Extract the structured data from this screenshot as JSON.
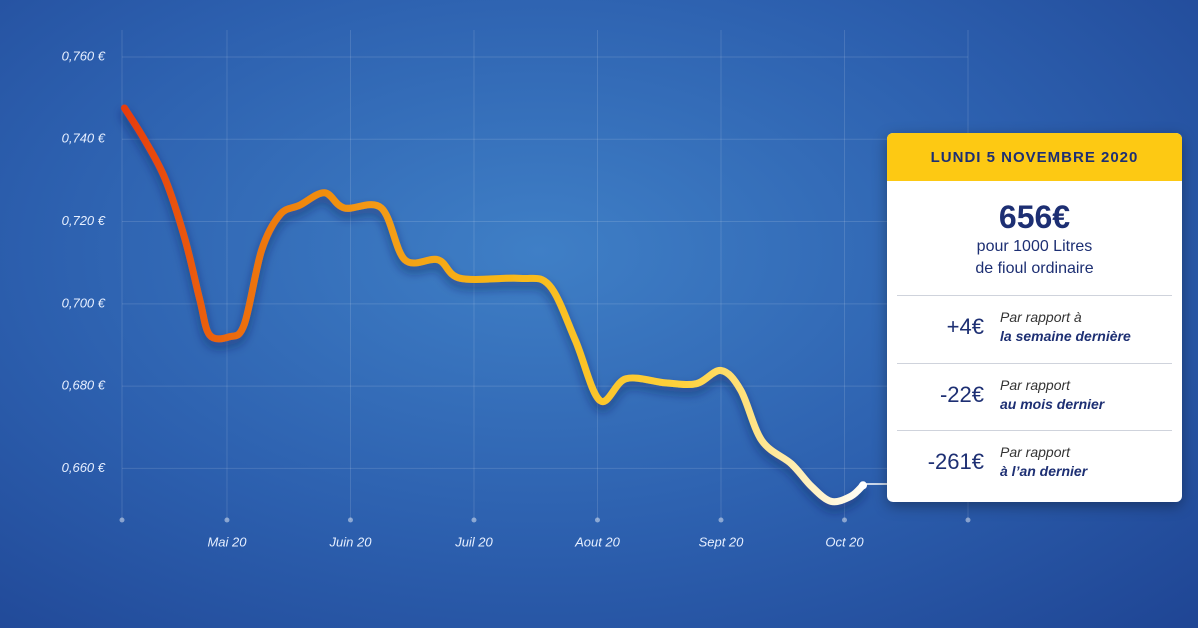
{
  "chart_data": {
    "type": "line",
    "ylim": [
      0.646,
      0.76
    ],
    "yticks": [
      {
        "value": 0.66,
        "label": "0,660 €"
      },
      {
        "value": 0.68,
        "label": "0,680 €"
      },
      {
        "value": 0.7,
        "label": "0,700 €"
      },
      {
        "value": 0.72,
        "label": "0,720 €"
      },
      {
        "value": 0.74,
        "label": "0,740 €"
      },
      {
        "value": 0.76,
        "label": "0,760 €"
      }
    ],
    "xlim": [
      0.15,
      7
    ],
    "xticks": [
      {
        "value": 1,
        "label": "Mai 20"
      },
      {
        "value": 2,
        "label": "Juin 20"
      },
      {
        "value": 3,
        "label": "Juil 20"
      },
      {
        "value": 4,
        "label": "Aout 20"
      },
      {
        "value": 5,
        "label": "Sept 20"
      },
      {
        "value": 6,
        "label": "Oct 20"
      }
    ],
    "grid": true,
    "series": [
      {
        "colors": [
          "#e63c10",
          "#f08a10",
          "#f7b616",
          "#ffd23c",
          "#ffffff"
        ],
        "x": [
          0.17,
          0.33,
          0.5,
          0.66,
          0.78,
          0.86,
          1.02,
          1.14,
          1.28,
          1.43,
          1.59,
          1.79,
          1.95,
          2.25,
          2.44,
          2.71,
          2.89,
          3.37,
          3.61,
          3.82,
          4.02,
          4.23,
          4.55,
          4.8,
          5.0,
          5.16,
          5.33,
          5.57,
          5.73,
          5.89,
          6.05,
          6.15
        ],
        "values": [
          0.7476,
          0.74,
          0.7303,
          0.7157,
          0.701,
          0.6924,
          0.692,
          0.695,
          0.713,
          0.7217,
          0.724,
          0.727,
          0.7233,
          0.7233,
          0.7107,
          0.7107,
          0.7062,
          0.7062,
          0.7045,
          0.6912,
          0.6765,
          0.6818,
          0.6808,
          0.6806,
          0.6838,
          0.679,
          0.6668,
          0.6611,
          0.6557,
          0.652,
          0.6532,
          0.6559
        ]
      }
    ]
  },
  "card": {
    "date": "LUNDI 5 NOVEMBRE 2020",
    "price": "656€",
    "line1": "pour 1000 Litres",
    "line2": "de fioul ordinaire",
    "rows": [
      {
        "delta": "+4€",
        "label1": "Par rapport à",
        "label2": "la  semaine dernière"
      },
      {
        "delta": "-22€",
        "label1": "Par rapport",
        "label2": "au mois dernier"
      },
      {
        "delta": "-261€",
        "label1": "Par rapport",
        "label2": "à l’an dernier"
      }
    ]
  }
}
